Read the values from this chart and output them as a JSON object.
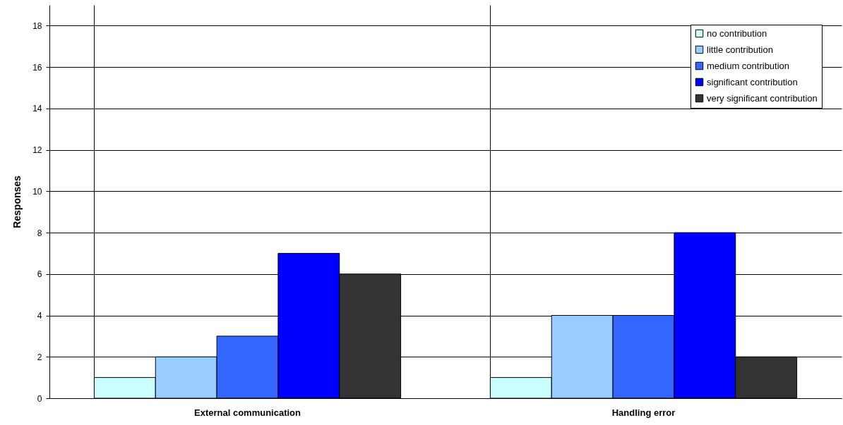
{
  "chart_data": {
    "type": "bar",
    "ylabel": "Responses",
    "categories": [
      "External communication",
      "Handling error"
    ],
    "series": [
      {
        "name": "no contribution",
        "color": "#ccffff",
        "values": [
          1,
          1
        ]
      },
      {
        "name": "little contribution",
        "color": "#99ccff",
        "values": [
          2,
          4
        ]
      },
      {
        "name": "medium contribution",
        "color": "#3366ff",
        "values": [
          3,
          4
        ]
      },
      {
        "name": "significant contribution",
        "color": "#0000ff",
        "values": [
          7,
          8
        ]
      },
      {
        "name": "very significant contribution",
        "color": "#333333",
        "values": [
          6,
          2
        ]
      }
    ],
    "ylim": [
      0,
      19
    ],
    "yticks": [
      0,
      2,
      4,
      6,
      8,
      10,
      12,
      14,
      16,
      18
    ],
    "grid": true,
    "legend": "top right"
  }
}
